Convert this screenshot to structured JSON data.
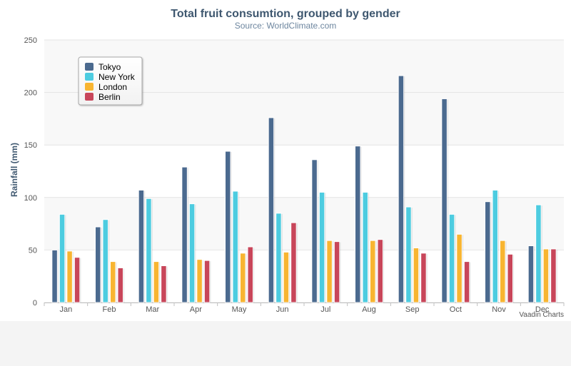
{
  "chart_data": {
    "type": "bar",
    "title": "Total fruit consumtion, grouped by gender",
    "subtitle": "Source: WorldClimate.com",
    "ylabel": "Rainfall (mm)",
    "xlabel": "",
    "ylim": [
      0,
      250
    ],
    "yticks": [
      0,
      50,
      100,
      150,
      200,
      250
    ],
    "grid": true,
    "legend_position": "top-left",
    "categories": [
      "Jan",
      "Feb",
      "Mar",
      "Apr",
      "May",
      "Jun",
      "Jul",
      "Aug",
      "Sep",
      "Oct",
      "Nov",
      "Dec"
    ],
    "series": [
      {
        "name": "Tokyo",
        "color": "#4b6a8f",
        "values": [
          50,
          72,
          107,
          129,
          144,
          176,
          136,
          149,
          216,
          194,
          96,
          54
        ]
      },
      {
        "name": "New York",
        "color": "#4dcce0",
        "values": [
          84,
          79,
          99,
          94,
          106,
          85,
          105,
          105,
          91,
          84,
          107,
          93
        ]
      },
      {
        "name": "London",
        "color": "#f8b531",
        "values": [
          49,
          39,
          39,
          41,
          47,
          48,
          59,
          59,
          52,
          65,
          59,
          51
        ]
      },
      {
        "name": "Berlin",
        "color": "#c8465a",
        "values": [
          43,
          33,
          35,
          40,
          53,
          76,
          58,
          60,
          47,
          39,
          46,
          51
        ]
      }
    ]
  },
  "credit": "Vaadin Charts"
}
